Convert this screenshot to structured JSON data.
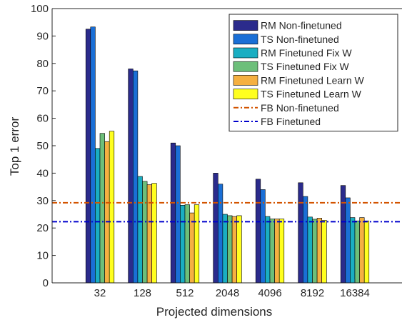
{
  "chart_data": {
    "type": "bar",
    "title": "",
    "xlabel": "Projected dimensions",
    "ylabel": "Top 1 error",
    "ylim": [
      0,
      100
    ],
    "yticks": [
      0,
      10,
      20,
      30,
      40,
      50,
      60,
      70,
      80,
      90,
      100
    ],
    "grid": false,
    "legend_position": "top-right",
    "categories": [
      "32",
      "128",
      "512",
      "2048",
      "4096",
      "8192",
      "16384"
    ],
    "series": [
      {
        "name": "RM Non-finetuned",
        "color": "#2b2b8c",
        "values": [
          92.5,
          78.0,
          51.0,
          40.0,
          37.8,
          36.5,
          35.5
        ]
      },
      {
        "name": "TS Non-finetuned",
        "color": "#1a6fd6",
        "values": [
          93.3,
          77.3,
          50.0,
          36.0,
          34.0,
          31.5,
          31.0
        ]
      },
      {
        "name": "RM Finetuned Fix W",
        "color": "#1aaec2",
        "values": [
          49.0,
          38.8,
          28.3,
          25.0,
          24.2,
          24.0,
          23.8
        ]
      },
      {
        "name": "TS Finetuned Fix W",
        "color": "#6dbf7a",
        "values": [
          54.5,
          37.0,
          28.5,
          24.5,
          23.3,
          23.2,
          22.6
        ]
      },
      {
        "name": "RM Finetuned Learn W",
        "color": "#f5b041",
        "values": [
          51.5,
          35.8,
          25.5,
          24.2,
          23.3,
          23.6,
          23.8
        ]
      },
      {
        "name": "TS Finetuned Learn W",
        "color": "#ffff1f",
        "values": [
          55.3,
          36.3,
          28.5,
          24.5,
          23.3,
          22.8,
          22.6
        ]
      }
    ],
    "reference_lines": [
      {
        "name": "FB Non-finetuned",
        "value": 29.2,
        "color": "#d35400"
      },
      {
        "name": "FB Finetuned",
        "value": 22.3,
        "color": "#0000cc"
      }
    ]
  }
}
